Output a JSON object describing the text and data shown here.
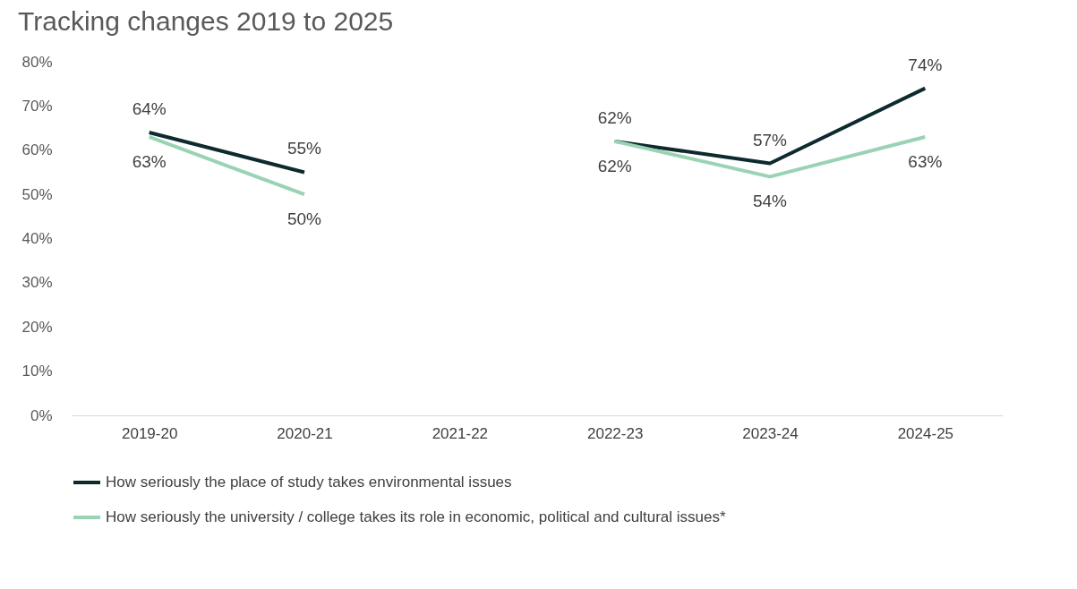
{
  "chart_data": {
    "type": "line",
    "title": "Tracking changes 2019 to 2025",
    "categories": [
      "2019-20",
      "2020-21",
      "2021-22",
      "2022-23",
      "2023-24",
      "2024-25"
    ],
    "series": [
      {
        "name": "How seriously the place of study takes environmental issues",
        "color": "#0d2a2e",
        "values": [
          64,
          55,
          null,
          62,
          57,
          74
        ],
        "value_labels": [
          "64%",
          "55%",
          null,
          "62%",
          "57%",
          "74%"
        ]
      },
      {
        "name": "How seriously the university / college takes its role in economic, political and cultural issues*",
        "color": "#99d3b4",
        "values": [
          63,
          50,
          null,
          62,
          54,
          63
        ],
        "value_labels": [
          "63%",
          "50%",
          null,
          "62%",
          "54%",
          "63%"
        ]
      }
    ],
    "ylim": [
      0,
      80
    ],
    "yticks": [
      {
        "value": 0,
        "label": "0%"
      },
      {
        "value": 10,
        "label": "10%"
      },
      {
        "value": 20,
        "label": "20%"
      },
      {
        "value": 30,
        "label": "30%"
      },
      {
        "value": 40,
        "label": "40%"
      },
      {
        "value": 50,
        "label": "50%"
      },
      {
        "value": 60,
        "label": "60%"
      },
      {
        "value": 70,
        "label": "70%"
      },
      {
        "value": 80,
        "label": "80%"
      }
    ],
    "grid": false,
    "legend": "bottom",
    "marker": "none",
    "line_style": "solid"
  }
}
